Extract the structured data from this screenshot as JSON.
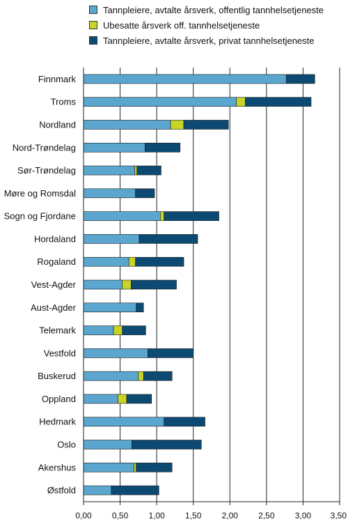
{
  "chart_data": {
    "type": "bar",
    "orientation": "horizontal",
    "stacked": true,
    "title": "",
    "xlabel": "",
    "ylabel": "",
    "xlim": [
      0,
      3.5
    ],
    "x_ticks": [
      "0,00",
      "0,50",
      "1,00",
      "1,50",
      "2,00",
      "2,50",
      "3,00",
      "3,50"
    ],
    "x_tick_values": [
      0,
      0.5,
      1.0,
      1.5,
      2.0,
      2.5,
      3.0,
      3.5
    ],
    "grid": "vertical",
    "legend_position": "top",
    "categories": [
      "Finnmark",
      "Troms",
      "Nordland",
      "Nord-Trøndelag",
      "Sør-Trøndelag",
      "Møre og Romsdal",
      "Sogn og Fjordane",
      "Hordaland",
      "Rogaland",
      "Vest-Agder",
      "Aust-Agder",
      "Telemark",
      "Vestfold",
      "Buskerud",
      "Oppland",
      "Hedmark",
      "Oslo",
      "Akershus",
      "Østfold"
    ],
    "series": [
      {
        "name": "Tannpleiere, avtalte årsverk, offentlig tannhelsetjeneste",
        "color": "#5aa6cf",
        "values": [
          2.77,
          2.09,
          1.19,
          0.84,
          0.7,
          0.71,
          1.05,
          0.76,
          0.62,
          0.53,
          0.72,
          0.41,
          0.88,
          0.75,
          0.47,
          1.1,
          0.66,
          0.69,
          0.38
        ]
      },
      {
        "name": "Ubesatte årsverk off. tannhelsetjeneste",
        "color": "#c8d428",
        "values": [
          0.0,
          0.12,
          0.18,
          0.0,
          0.03,
          0.0,
          0.05,
          0.0,
          0.09,
          0.12,
          0.0,
          0.12,
          0.0,
          0.07,
          0.12,
          0.0,
          0.0,
          0.03,
          0.0
        ]
      },
      {
        "name": "Tannpleiere, avtalte årsverk, privat tannhelsetjeneste",
        "color": "#0d4a73",
        "values": [
          0.39,
          0.9,
          0.61,
          0.48,
          0.33,
          0.26,
          0.75,
          0.8,
          0.66,
          0.62,
          0.1,
          0.32,
          0.62,
          0.39,
          0.34,
          0.56,
          0.95,
          0.49,
          0.65
        ]
      }
    ]
  }
}
